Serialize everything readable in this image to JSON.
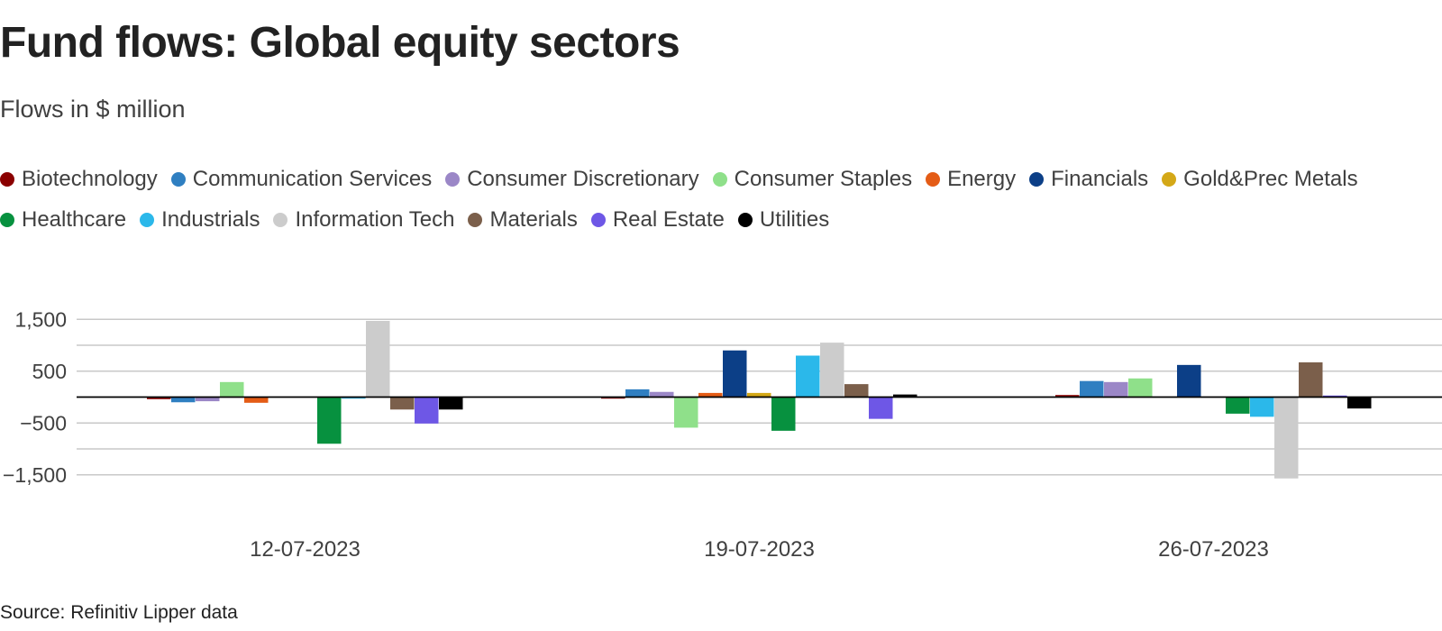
{
  "chart_data": {
    "type": "bar",
    "title": "Fund flows: Global equity sectors",
    "subtitle": "Flows in $ million",
    "source": "Source: Refinitiv Lipper data",
    "categories": [
      "12-07-2023",
      "19-07-2023",
      "26-07-2023"
    ],
    "series": [
      {
        "name": "Biotechnology",
        "color": "#8b0000",
        "values": [
          -40,
          -30,
          40
        ]
      },
      {
        "name": "Communication Services",
        "color": "#2f7fc1",
        "values": [
          -100,
          150,
          310
        ]
      },
      {
        "name": "Consumer Discretionary",
        "color": "#9b87c7",
        "values": [
          -80,
          100,
          290
        ]
      },
      {
        "name": "Consumer Staples",
        "color": "#8fe08a",
        "values": [
          290,
          -590,
          360
        ]
      },
      {
        "name": "Energy",
        "color": "#e45c16",
        "values": [
          -110,
          80,
          0
        ]
      },
      {
        "name": "Financials",
        "color": "#0c3f87",
        "values": [
          0,
          900,
          620
        ]
      },
      {
        "name": "Gold&Prec Metals",
        "color": "#d4a817",
        "values": [
          0,
          80,
          0
        ]
      },
      {
        "name": "Healthcare",
        "color": "#07913f",
        "values": [
          -900,
          -650,
          -320
        ]
      },
      {
        "name": "Industrials",
        "color": "#2bb8ea",
        "values": [
          -30,
          800,
          -380
        ]
      },
      {
        "name": "Information Tech",
        "color": "#cccccc",
        "values": [
          1470,
          1050,
          -1570
        ]
      },
      {
        "name": "Materials",
        "color": "#7b5f4b",
        "values": [
          -240,
          250,
          670
        ]
      },
      {
        "name": "Real Estate",
        "color": "#6e57e6",
        "values": [
          -510,
          -420,
          30
        ]
      },
      {
        "name": "Utilities",
        "color": "#000000",
        "values": [
          -240,
          50,
          -220
        ]
      }
    ],
    "yticks": [
      1500,
      500,
      -500,
      -1500
    ],
    "ytick_labels": [
      "1,500",
      "500",
      "−500",
      "−1,500"
    ],
    "ylim": [
      -2000,
      2000
    ],
    "grid": true,
    "legend_position": "top",
    "gridline_color": "#c8c8c8",
    "zeroline_color": "#000000"
  }
}
